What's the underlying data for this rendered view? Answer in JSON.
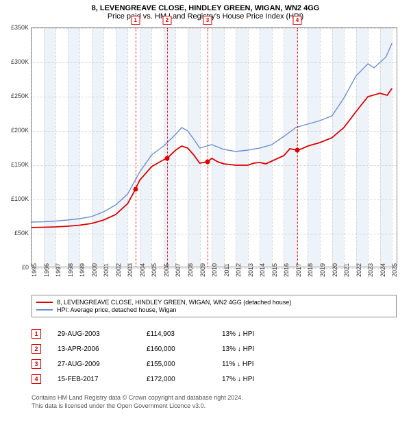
{
  "title": {
    "line1": "8, LEVENGREAVE CLOSE, HINDLEY GREEN, WIGAN, WN2 4GG",
    "line2": "Price paid vs. HM Land Registry's House Price Index (HPI)"
  },
  "chart": {
    "type": "line",
    "x_domain": [
      1995,
      2025.5
    ],
    "y_domain": [
      0,
      350000
    ],
    "y_ticks": [
      0,
      50000,
      100000,
      150000,
      200000,
      250000,
      300000,
      350000
    ],
    "y_tick_labels": [
      "£0",
      "£50K",
      "£100K",
      "£150K",
      "£200K",
      "£250K",
      "£300K",
      "£350K"
    ],
    "x_ticks": [
      1995,
      1996,
      1997,
      1998,
      1999,
      2000,
      2001,
      2002,
      2003,
      2004,
      2005,
      2006,
      2007,
      2008,
      2009,
      2010,
      2011,
      2012,
      2013,
      2014,
      2015,
      2016,
      2017,
      2018,
      2019,
      2020,
      2021,
      2022,
      2023,
      2024,
      2025
    ],
    "grid_color": "#d0d0d0",
    "alt_bands": [
      {
        "start": 1996,
        "end": 1997
      },
      {
        "start": 1998,
        "end": 1999
      },
      {
        "start": 2000,
        "end": 2001
      },
      {
        "start": 2002,
        "end": 2003
      },
      {
        "start": 2004,
        "end": 2005
      },
      {
        "start": 2006,
        "end": 2007
      },
      {
        "start": 2008,
        "end": 2009
      },
      {
        "start": 2010,
        "end": 2011
      },
      {
        "start": 2012,
        "end": 2013
      },
      {
        "start": 2014,
        "end": 2015
      },
      {
        "start": 2016,
        "end": 2017
      },
      {
        "start": 2018,
        "end": 2019
      },
      {
        "start": 2020,
        "end": 2021
      },
      {
        "start": 2022,
        "end": 2023
      },
      {
        "start": 2024,
        "end": 2025
      }
    ],
    "band_color": "#eef2f9",
    "background_color": "#ffffff",
    "series": [
      {
        "name": "price_paid",
        "label": "8, LEVENGREAVE CLOSE, HINDLEY GREEN, WIGAN, WN2 4GG (detached house)",
        "color": "#dd0000",
        "line_width": 1.8,
        "points": [
          [
            1995,
            59000
          ],
          [
            1996,
            59500
          ],
          [
            1997,
            60000
          ],
          [
            1998,
            61000
          ],
          [
            1999,
            62500
          ],
          [
            2000,
            65000
          ],
          [
            2001,
            70000
          ],
          [
            2002,
            78000
          ],
          [
            2003,
            94000
          ],
          [
            2003.65,
            114903
          ],
          [
            2004,
            128000
          ],
          [
            2005,
            148000
          ],
          [
            2006,
            158000
          ],
          [
            2006.28,
            160000
          ],
          [
            2007,
            172000
          ],
          [
            2007.5,
            178000
          ],
          [
            2008,
            175000
          ],
          [
            2008.5,
            165000
          ],
          [
            2009,
            153000
          ],
          [
            2009.65,
            155000
          ],
          [
            2010,
            160000
          ],
          [
            2010.5,
            155000
          ],
          [
            2011,
            152000
          ],
          [
            2012,
            150000
          ],
          [
            2013,
            150000
          ],
          [
            2013.5,
            153000
          ],
          [
            2014,
            154000
          ],
          [
            2014.5,
            152000
          ],
          [
            2015,
            156000
          ],
          [
            2016,
            164000
          ],
          [
            2016.5,
            174000
          ],
          [
            2017.12,
            172000
          ],
          [
            2017.5,
            174000
          ],
          [
            2018,
            178000
          ],
          [
            2019,
            183000
          ],
          [
            2020,
            190000
          ],
          [
            2021,
            205000
          ],
          [
            2022,
            228000
          ],
          [
            2023,
            250000
          ],
          [
            2024,
            255000
          ],
          [
            2024.6,
            252000
          ],
          [
            2025,
            262000
          ]
        ]
      },
      {
        "name": "hpi",
        "label": "HPI: Average price, detached house, Wigan",
        "color": "#6a8fd0",
        "line_width": 1.4,
        "points": [
          [
            1995,
            67000
          ],
          [
            1996,
            67500
          ],
          [
            1997,
            68500
          ],
          [
            1998,
            70000
          ],
          [
            1999,
            72000
          ],
          [
            2000,
            75000
          ],
          [
            2001,
            82000
          ],
          [
            2002,
            92000
          ],
          [
            2003,
            108000
          ],
          [
            2004,
            140000
          ],
          [
            2005,
            165000
          ],
          [
            2006,
            178000
          ],
          [
            2007,
            195000
          ],
          [
            2007.5,
            205000
          ],
          [
            2008,
            200000
          ],
          [
            2008.5,
            188000
          ],
          [
            2009,
            175000
          ],
          [
            2010,
            180000
          ],
          [
            2011,
            173000
          ],
          [
            2012,
            170000
          ],
          [
            2013,
            172000
          ],
          [
            2014,
            175000
          ],
          [
            2015,
            180000
          ],
          [
            2016,
            192000
          ],
          [
            2017,
            205000
          ],
          [
            2018,
            210000
          ],
          [
            2019,
            215000
          ],
          [
            2020,
            222000
          ],
          [
            2021,
            248000
          ],
          [
            2022,
            280000
          ],
          [
            2023,
            298000
          ],
          [
            2023.5,
            292000
          ],
          [
            2024,
            300000
          ],
          [
            2024.5,
            308000
          ],
          [
            2025,
            328000
          ]
        ]
      }
    ],
    "sale_markers": [
      {
        "n": "1",
        "x": 2003.65,
        "y": 114903
      },
      {
        "n": "2",
        "x": 2006.28,
        "y": 160000
      },
      {
        "n": "3",
        "x": 2009.65,
        "y": 155000
      },
      {
        "n": "4",
        "x": 2017.12,
        "y": 172000
      }
    ],
    "marker_color": "#dd0000"
  },
  "legend": {
    "items": [
      {
        "color": "#dd0000",
        "label": "8, LEVENGREAVE CLOSE, HINDLEY GREEN, WIGAN, WN2 4GG (detached house)"
      },
      {
        "color": "#6a8fd0",
        "label": "HPI: Average price, detached house, Wigan"
      }
    ]
  },
  "sales": [
    {
      "n": "1",
      "date": "29-AUG-2003",
      "price": "£114,903",
      "pct": "13% ↓ HPI"
    },
    {
      "n": "2",
      "date": "13-APR-2006",
      "price": "£160,000",
      "pct": "13% ↓ HPI"
    },
    {
      "n": "3",
      "date": "27-AUG-2009",
      "price": "£155,000",
      "pct": "11% ↓ HPI"
    },
    {
      "n": "4",
      "date": "15-FEB-2017",
      "price": "£172,000",
      "pct": "17% ↓ HPI"
    }
  ],
  "footer": {
    "line1": "Contains HM Land Registry data © Crown copyright and database right 2024.",
    "line2": "This data is licensed under the Open Government Licence v3.0."
  }
}
